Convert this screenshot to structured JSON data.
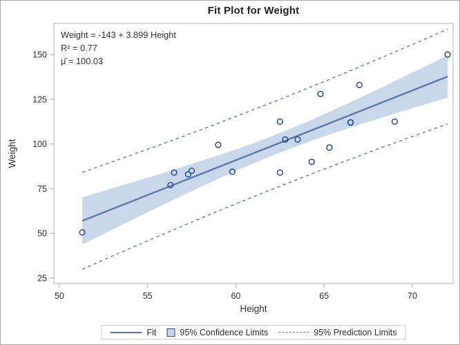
{
  "chart_data": {
    "type": "scatter",
    "title": "Fit Plot for Weight",
    "xlabel": "Height",
    "ylabel": "Weight",
    "xlim": [
      49.69,
      72.31
    ],
    "ylim": [
      21.9,
      167.4
    ],
    "xticks": [
      50,
      55,
      60,
      65,
      70
    ],
    "yticks": [
      25,
      50,
      75,
      100,
      125,
      150
    ],
    "inset_lines": [
      "Weight = -143 + 3.899 Height",
      "R² = 0.77",
      "μ̂ = 100.03"
    ],
    "points": [
      [
        69.0,
        112.5
      ],
      [
        56.5,
        84.0
      ],
      [
        65.3,
        98.0
      ],
      [
        62.8,
        102.5
      ],
      [
        63.5,
        102.5
      ],
      [
        57.3,
        83.0
      ],
      [
        59.8,
        84.5
      ],
      [
        62.5,
        112.5
      ],
      [
        62.5,
        84.0
      ],
      [
        59.0,
        99.5
      ],
      [
        51.3,
        50.5
      ],
      [
        64.3,
        90.0
      ],
      [
        56.3,
        77.0
      ],
      [
        66.5,
        112.0
      ],
      [
        72.0,
        150.0
      ],
      [
        64.8,
        128.0
      ],
      [
        67.0,
        133.0
      ],
      [
        57.5,
        85.0
      ],
      [
        66.5,
        112.0
      ]
    ],
    "fit": {
      "intercept": -143.0269,
      "slope": 3.89903,
      "x_range": [
        51.3,
        72.0
      ]
    },
    "confidence_band": {
      "x": [
        51.3,
        53.0,
        55.0,
        57.0,
        59.0,
        61.0,
        62.34,
        64.0,
        66.0,
        68.0,
        70.0,
        72.0
      ],
      "lower": [
        43.8,
        52.1,
        61.8,
        71.3,
        80.5,
        89.2,
        94.6,
        100.8,
        107.6,
        113.9,
        120.0,
        125.9
      ],
      "upper": [
        70.2,
        75.2,
        81.1,
        87.2,
        93.6,
        100.4,
        105.5,
        112.2,
        121.1,
        130.3,
        139.9,
        149.5
      ]
    },
    "prediction_limits": {
      "x": [
        51.3,
        53.0,
        55.0,
        57.0,
        59.0,
        61.0,
        62.34,
        64.0,
        66.0,
        68.0,
        70.0,
        72.0
      ],
      "lower": [
        29.9,
        37.3,
        45.8,
        54.2,
        62.5,
        70.5,
        75.7,
        82.1,
        89.7,
        97.0,
        104.2,
        111.2
      ],
      "upper": [
        84.1,
        90.0,
        97.0,
        104.2,
        111.6,
        119.2,
        124.3,
        130.9,
        138.9,
        147.2,
        155.6,
        164.2
      ]
    },
    "legend": [
      {
        "label": "Fit",
        "symbol": "line"
      },
      {
        "label": "95% Confidence Limits",
        "symbol": "square"
      },
      {
        "label": "95% Prediction Limits",
        "symbol": "dashed"
      }
    ],
    "colors": {
      "marker": "#27479b",
      "fit_line": "#5b79a4",
      "band_fill": "#c8d8ea",
      "pred_line": "#5c77bb",
      "frame": "#b0b0b0",
      "tick_label": "#2f2f2f",
      "axis_label": "#2f2f2f",
      "inset_text": "#333333",
      "title_text": "#1f1f1f",
      "outer_border": "#a6a6a6",
      "legend_border": "#c9c9c9"
    }
  }
}
